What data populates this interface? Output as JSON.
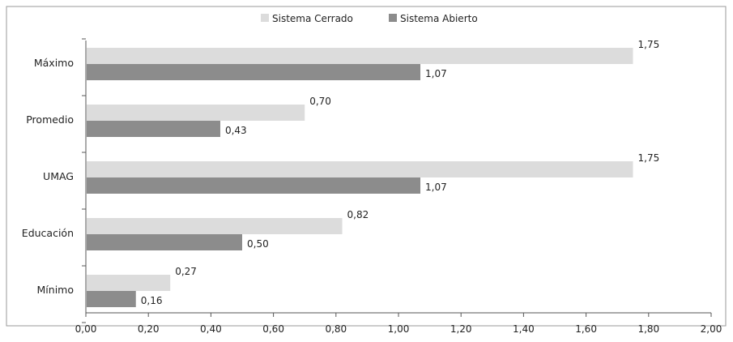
{
  "chart_data": {
    "type": "bar",
    "orientation": "horizontal",
    "categories": [
      "Máximo",
      "Promedio",
      "UMAG",
      "Educación",
      "Mínimo"
    ],
    "series": [
      {
        "name": "Sistema Cerrado",
        "values": [
          1.75,
          0.7,
          1.75,
          0.82,
          0.27
        ],
        "labels": [
          "1,75",
          "0,70",
          "1,75",
          "0,82",
          "0,27"
        ],
        "color": "#dcdcdc"
      },
      {
        "name": "Sistema Abierto",
        "values": [
          1.07,
          0.43,
          1.07,
          0.5,
          0.16
        ],
        "labels": [
          "1,07",
          "0,43",
          "1,07",
          "0,50",
          "0,16"
        ],
        "color": "#8c8c8c"
      }
    ],
    "xlim": [
      0,
      2.0
    ],
    "xticks": [
      "0,00",
      "0,20",
      "0,40",
      "0,60",
      "0,80",
      "1,00",
      "1,20",
      "1,40",
      "1,60",
      "1,80",
      "2,00"
    ],
    "title": "",
    "xlabel": "",
    "ylabel": "",
    "grid": false,
    "legend": "top-center"
  }
}
